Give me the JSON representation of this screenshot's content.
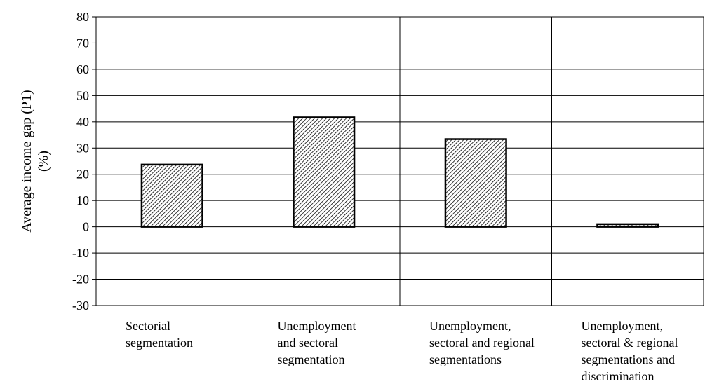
{
  "chart_data": {
    "type": "bar",
    "title": "",
    "ylabel_lines": [
      "Average  income gap (P1)",
      "(%)"
    ],
    "xlabel": "",
    "ylim": [
      -30,
      80
    ],
    "yticks": [
      80,
      70,
      60,
      50,
      40,
      30,
      20,
      10,
      0,
      -10,
      -20,
      -30
    ],
    "grid": true,
    "categories": [
      [
        "Sectorial",
        "segmentation"
      ],
      [
        "Unemployment",
        "and sectoral",
        "segmentation"
      ],
      [
        "Unemployment,",
        "sectoral and regional",
        "segmentations"
      ],
      [
        "Unemployment,",
        "sectoral & regional",
        "segmentations and",
        "discrimination"
      ]
    ],
    "values": [
      23.7,
      41.7,
      33.4,
      1.0
    ],
    "bar_fill": "hatched",
    "bar_color": "#000000"
  }
}
